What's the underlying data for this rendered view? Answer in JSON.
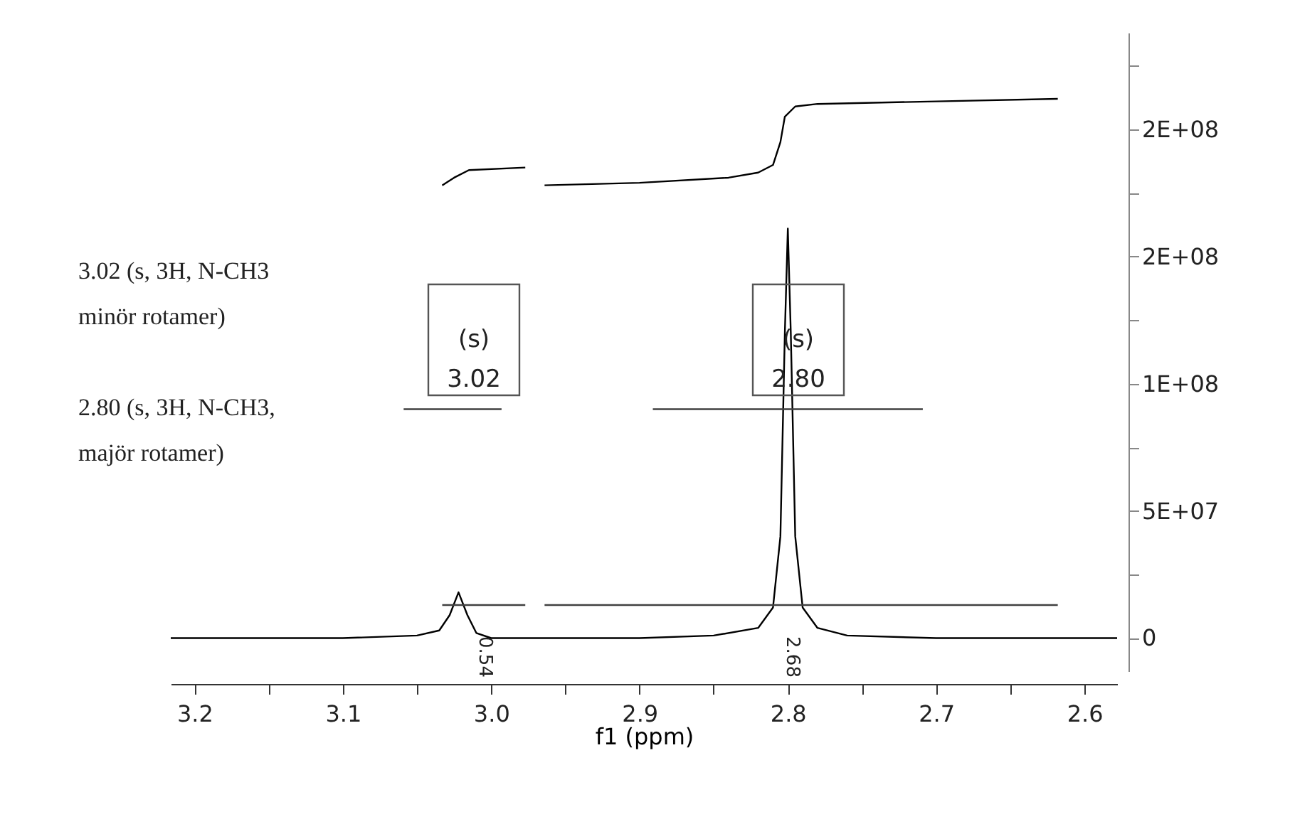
{
  "chart_data": {
    "type": "line",
    "xlabel": "f1 (ppm)",
    "xlim": [
      3.216,
      2.578
    ],
    "ylim": [
      -13000000,
      238000000
    ],
    "xticks": [
      3.2,
      {
        "value": 3.15,
        "label": null
      },
      3.1,
      {
        "value": 3.05,
        "label": null
      },
      {
        "value": 3,
        "label": "3.0"
      },
      {
        "value": 2.95,
        "label": null
      },
      2.9,
      {
        "value": 2.85,
        "label": null
      },
      2.8,
      {
        "value": 2.75,
        "label": null
      },
      2.7,
      {
        "value": 2.65,
        "label": null
      },
      2.6
    ],
    "yticks": [
      0,
      {
        "value": 25000000,
        "label": null
      },
      {
        "value": 50000000,
        "label": "5E+07"
      },
      {
        "value": 75000000,
        "label": null
      },
      {
        "value": 100000000,
        "label": "1E+08"
      },
      {
        "value": 125000000,
        "label": null
      },
      {
        "value": 150000000,
        "label": "2E+08"
      },
      {
        "value": 175000000,
        "label": null
      },
      {
        "value": 200000000,
        "label": "2E+08"
      },
      {
        "value": 225000000,
        "label": null
      }
    ],
    "grid": false,
    "legend": false,
    "series": [
      {
        "color": "#000000",
        "x": [
          3.216,
          3.1,
          3.05,
          3.035,
          3.028,
          3.022,
          3.016,
          3.01,
          3.0,
          2.9,
          2.85,
          2.82,
          2.81,
          2.805,
          2.802,
          2.8,
          2.798,
          2.795,
          2.79,
          2.78,
          2.76,
          2.7,
          2.578
        ],
        "values": [
          0,
          0,
          1000000,
          3000000,
          9000000,
          18000000,
          9000000,
          2000000,
          0,
          0,
          1000000,
          4000000,
          12000000,
          40000000,
          120000000,
          161000000,
          120000000,
          40000000,
          12000000,
          4000000,
          1000000,
          0,
          0
        ]
      },
      {
        "color": "#000000",
        "x": [
          3.033,
          3.025,
          3.015,
          2.977
        ],
        "values": [
          178000000,
          181000000,
          184000000,
          185000000
        ]
      },
      {
        "color": "#000000",
        "x": [
          2.964,
          2.9,
          2.84,
          2.82,
          2.81,
          2.805,
          2.802,
          2.795,
          2.78,
          2.7,
          2.618
        ],
        "values": [
          178000000,
          179000000,
          181000000,
          183000000,
          186000000,
          195000000,
          205000000,
          209000000,
          210000000,
          211000000,
          212000000
        ]
      },
      {
        "color": "#404040",
        "x": [
          3.033,
          2.977
        ],
        "values": [
          13000000,
          13000000
        ]
      },
      {
        "color": "#404040",
        "x": [
          2.964,
          2.618
        ],
        "values": [
          13000000,
          13000000
        ]
      },
      {
        "color": "#404040",
        "x": [
          3.059,
          2.993
        ],
        "values": [
          90000000,
          90000000
        ]
      },
      {
        "color": "#404040",
        "x": [
          2.891,
          2.709
        ],
        "values": [
          90000000,
          90000000
        ]
      }
    ],
    "annotations": [
      "3.02 (s, 3H, N-CH3\nminör rotamer)",
      "2.80 (s, 3H, N-CH3,\nmajör rotamer)",
      "(s)\n3.02",
      "(s)\n2.80",
      "0.54",
      "2.68"
    ]
  }
}
